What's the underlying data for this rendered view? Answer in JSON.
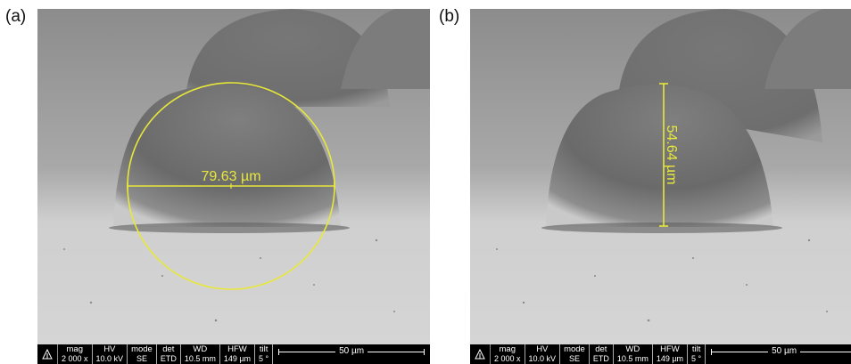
{
  "panels": [
    {
      "label": "(a)",
      "measurement": "79.63 µm",
      "measurement_orientation": "horizontal",
      "overlay": "circle-fit",
      "infobar": {
        "headers": [
          "mag",
          "HV",
          "mode",
          "det",
          "WD",
          "HFW",
          "tilt"
        ],
        "values": [
          "2 000 x",
          "10.0 kV",
          "SE",
          "ETD",
          "10.5 mm",
          "149 µm",
          "5 °"
        ],
        "scale": "50 µm"
      }
    },
    {
      "label": "(b)",
      "measurement": "54.64 µm",
      "measurement_orientation": "vertical",
      "overlay": "height-line",
      "infobar": {
        "headers": [
          "mag",
          "HV",
          "mode",
          "det",
          "WD",
          "HFW",
          "tilt"
        ],
        "values": [
          "2 000 x",
          "10.0 kV",
          "SE",
          "ETD",
          "10.5 mm",
          "149 µm",
          "5 °"
        ],
        "scale": "50 µm"
      }
    }
  ],
  "colors": {
    "annotation": "#e8e83a",
    "infobar_bg": "#000000",
    "infobar_text": "#ffffff"
  },
  "icons": [
    "sem-logo-icon"
  ]
}
